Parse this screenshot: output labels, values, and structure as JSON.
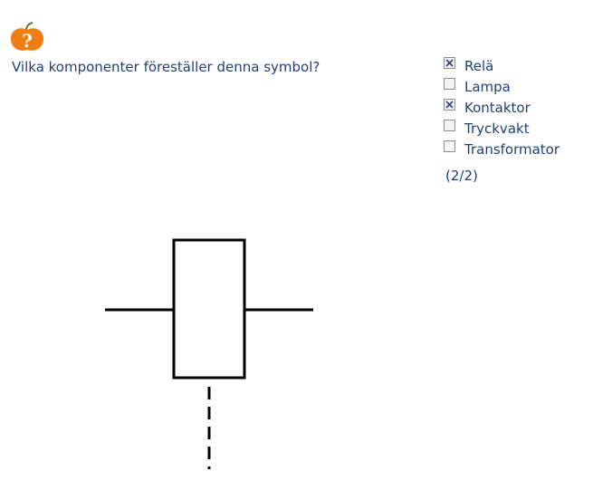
{
  "question": {
    "text": "Vilka komponenter föreställer denna symbol?",
    "icon": "question-mark-apple-icon",
    "icon_glyph": "?"
  },
  "options": [
    {
      "label": "Relä",
      "checked": true
    },
    {
      "label": "Lampa",
      "checked": false
    },
    {
      "label": "Kontaktor",
      "checked": true
    },
    {
      "label": "Tryckvakt",
      "checked": false
    },
    {
      "label": "Transformator",
      "checked": false
    }
  ],
  "score": "(2/2)",
  "colors": {
    "text": "#1f3f7a",
    "icon_orange": "#f07d12",
    "check_mark": "#2b3f8f",
    "symbol_stroke": "#000000"
  }
}
